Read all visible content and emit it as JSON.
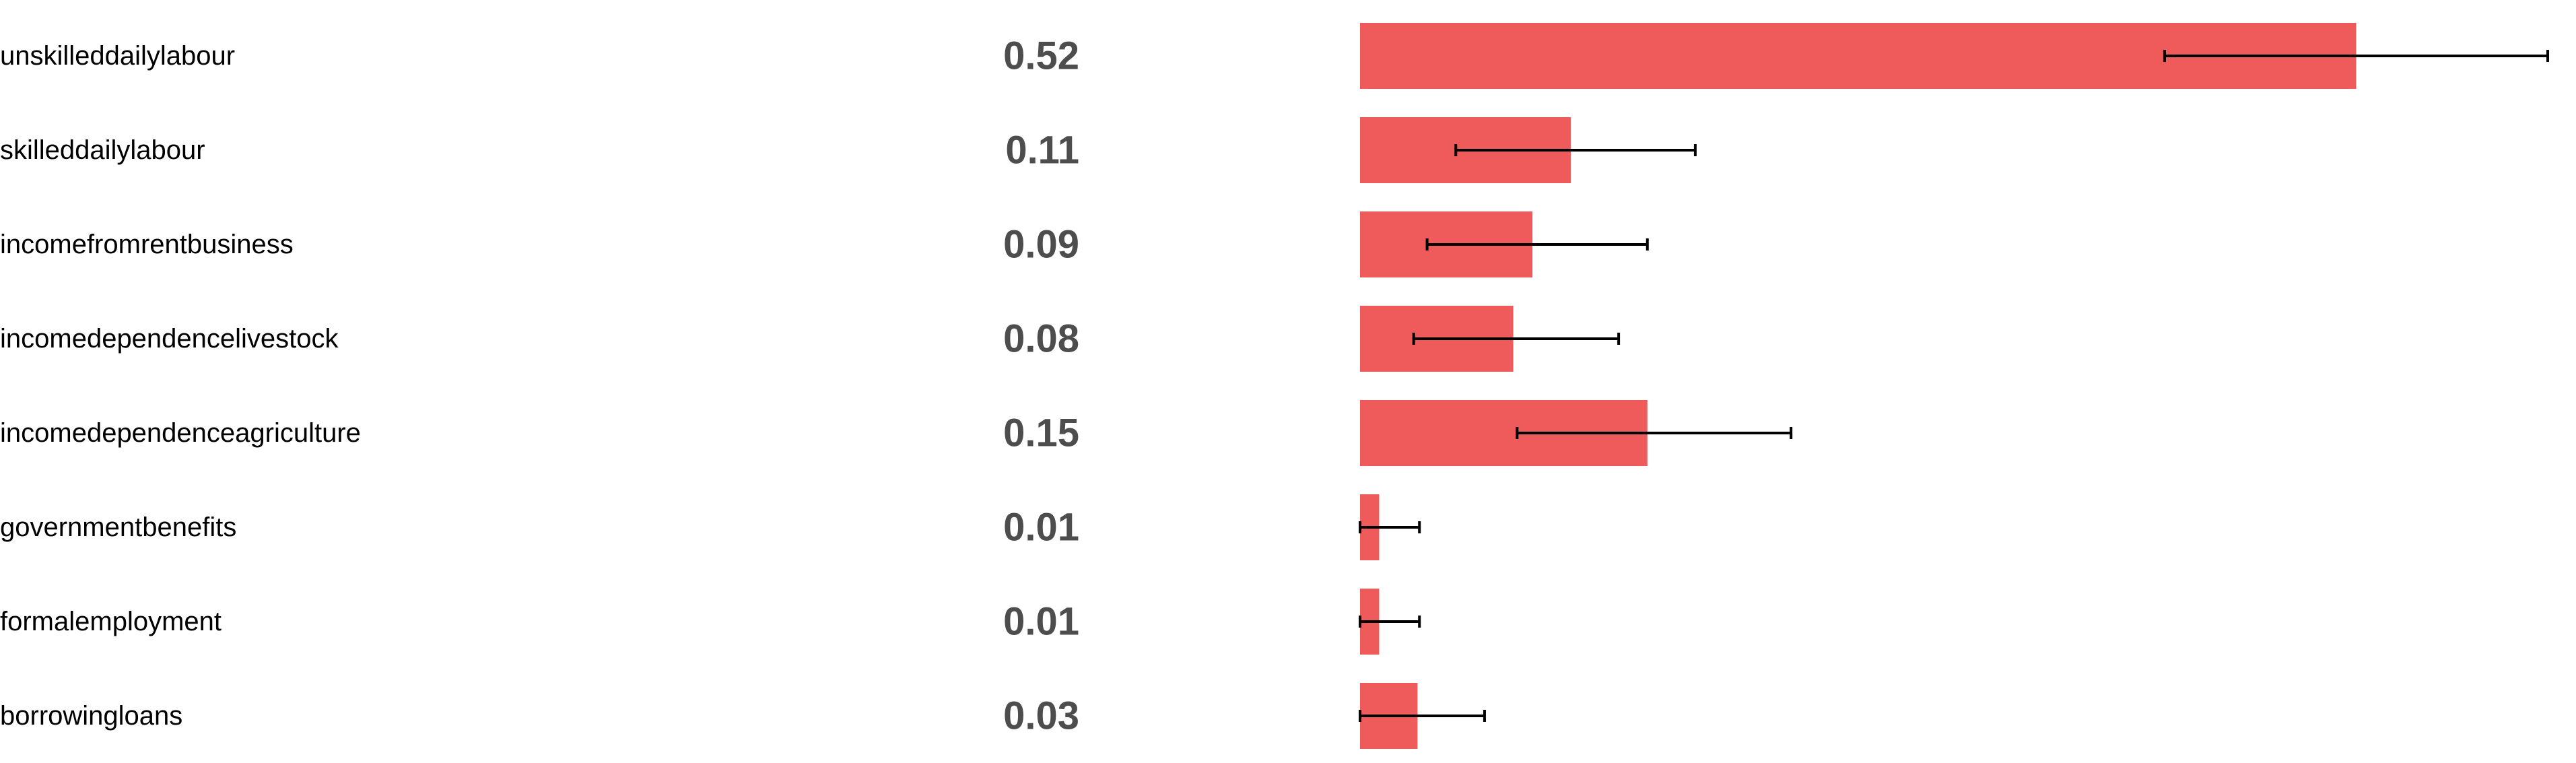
{
  "chart_data": {
    "type": "bar",
    "orientation": "horizontal",
    "title": "",
    "xlabel": "",
    "ylabel": "",
    "categories": [
      "unskilleddailylabour",
      "skilleddailylabour",
      "incomefromrentbusiness",
      "incomedependencelivestock",
      "incomedependenceagriculture",
      "governmentbenefits",
      "formalemployment",
      "borrowingloans"
    ],
    "value_labels": [
      "0.52",
      "0.11",
      "0.09",
      "0.08",
      "0.15",
      "0.01",
      "0.01",
      "0.03"
    ],
    "values": [
      0.52,
      0.11,
      0.09,
      0.08,
      0.15,
      0.01,
      0.01,
      0.03
    ],
    "error_low": [
      0.42,
      0.05,
      0.035,
      0.028,
      0.082,
      0.0,
      0.0,
      0.0
    ],
    "error_high": [
      0.62,
      0.175,
      0.15,
      0.135,
      0.225,
      0.031,
      0.031,
      0.065
    ],
    "xlim": [
      0,
      0.62
    ],
    "grid": false,
    "legend": "none",
    "bar_color": "#ef5a5b",
    "error_color": "#000000",
    "label_color": "#000000",
    "value_color": "#4d4d4d"
  }
}
